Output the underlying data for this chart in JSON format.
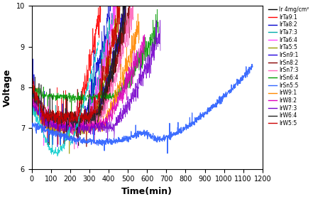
{
  "xlabel": "Time(min)",
  "ylabel": "Voltage",
  "xlim": [
    0,
    1200
  ],
  "ylim": [
    6,
    10
  ],
  "yticks": [
    6,
    7,
    8,
    9,
    10
  ],
  "xticks": [
    0,
    100,
    200,
    300,
    400,
    500,
    600,
    700,
    800,
    900,
    1000,
    1100,
    1200
  ],
  "legend_entries": [
    {
      "label": "Ir 4mg/cm²",
      "color": "#000000"
    },
    {
      "label": "IrTa9:1",
      "color": "#ff0000"
    },
    {
      "label": "IrTa8:2",
      "color": "#0000cc"
    },
    {
      "label": "IrTa7:3",
      "color": "#00aaaa"
    },
    {
      "label": "IrTa6:4",
      "color": "#ff44ff"
    },
    {
      "label": "IrTa5:5",
      "color": "#999900"
    },
    {
      "label": "IrSn9:1",
      "color": "#2200dd"
    },
    {
      "label": "IrSn8:2",
      "color": "#880000"
    },
    {
      "label": "IrSn7:3",
      "color": "#ff66bb"
    },
    {
      "label": "IrSn6:4",
      "color": "#009900"
    },
    {
      "label": "IrSn5:5",
      "color": "#3366ff"
    },
    {
      "label": "IrW9:1",
      "color": "#ff8800"
    },
    {
      "label": "IrW8:2",
      "color": "#dd00bb"
    },
    {
      "label": "IrW7:3",
      "color": "#7700cc"
    },
    {
      "label": "IrW6:4",
      "color": "#222222"
    },
    {
      "label": "IrW5:5",
      "color": "#cc0000"
    }
  ],
  "figsize": [
    4.41,
    2.8
  ],
  "dpi": 100
}
